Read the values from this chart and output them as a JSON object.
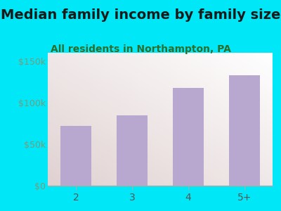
{
  "title": "Median family income by family size",
  "subtitle": "All residents in Northampton, PA",
  "categories": [
    "2",
    "3",
    "4",
    "5+"
  ],
  "values": [
    72000,
    85000,
    118000,
    133000
  ],
  "bar_color": "#b8a8d0",
  "background_outer": "#00e8f8",
  "ylabel_ticks": [
    0,
    50000,
    100000,
    150000
  ],
  "ylabel_labels": [
    "$0",
    "$50k",
    "$100k",
    "$150k"
  ],
  "ylim": [
    0,
    160000
  ],
  "title_fontsize": 14,
  "subtitle_fontsize": 10,
  "tick_color": "#5a7a5a",
  "title_color": "#1a1a1a",
  "subtitle_color": "#2d6e2d",
  "ytick_color": "#7a9a7a"
}
